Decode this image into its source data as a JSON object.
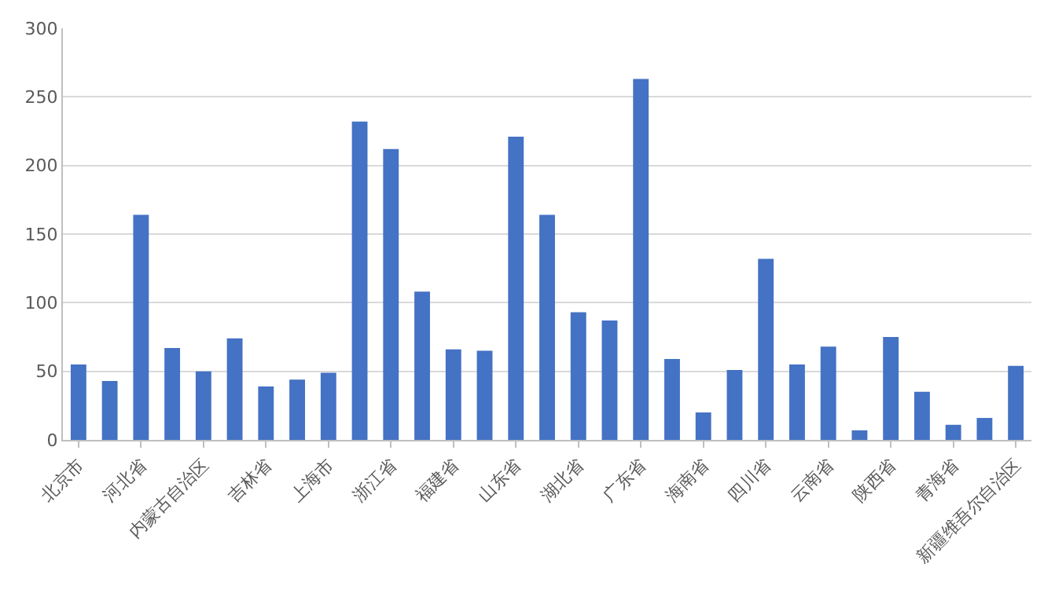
{
  "chart_data": {
    "type": "bar",
    "categories": [
      "北京市",
      null,
      "河北省",
      null,
      "内蒙古自治区",
      null,
      "吉林省",
      null,
      "上海市",
      null,
      "浙江省",
      null,
      "福建省",
      null,
      "山东省",
      null,
      "湖北省",
      null,
      "广东省",
      null,
      "海南省",
      null,
      "四川省",
      null,
      "云南省",
      null,
      "陕西省",
      null,
      "青海省",
      null,
      "新疆维吾尔自治区"
    ],
    "values": [
      55,
      43,
      164,
      67,
      50,
      74,
      39,
      44,
      49,
      232,
      212,
      108,
      66,
      65,
      221,
      164,
      93,
      87,
      263,
      59,
      20,
      51,
      132,
      55,
      68,
      7,
      75,
      35,
      11,
      16,
      54
    ],
    "color": "#4472c4",
    "ylim": [
      0,
      300
    ],
    "yticks": [
      0,
      50,
      100,
      150,
      200,
      250,
      300
    ],
    "grid": "y"
  }
}
